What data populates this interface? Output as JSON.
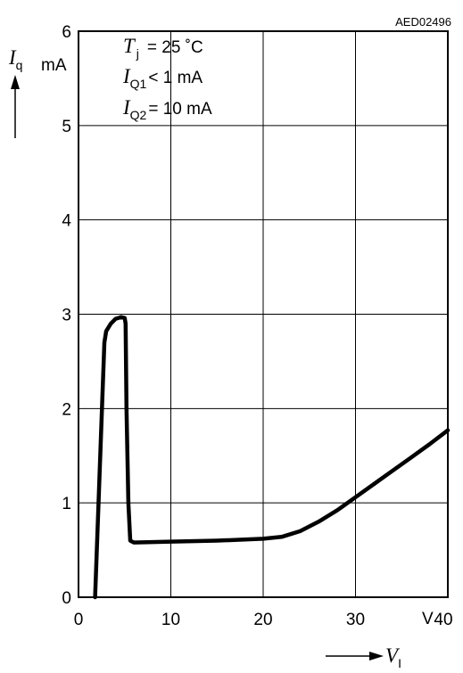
{
  "figure_code": "AED02496",
  "y_axis": {
    "symbol": "I",
    "subscript": "q",
    "unit": "mA"
  },
  "x_axis": {
    "symbol": "V",
    "subscript": "I",
    "unit": "V"
  },
  "conditions": [
    {
      "symbol": "T",
      "subscript": "j",
      "text": "= 25 ˚C"
    },
    {
      "symbol": "I",
      "subscript": "Q1",
      "text": "< 1 mA"
    },
    {
      "symbol": "I",
      "subscript": "Q2",
      "text": "= 10 mA"
    }
  ],
  "chart_data": {
    "type": "line",
    "xlabel": "V_I",
    "ylabel": "I_q",
    "xlim": [
      0,
      40
    ],
    "ylim": [
      0,
      6
    ],
    "x_ticks": [
      "0",
      "10",
      "20",
      "30",
      "40"
    ],
    "y_ticks": [
      "0",
      "1",
      "2",
      "3",
      "4",
      "5",
      "6"
    ],
    "grid": true,
    "series": [
      {
        "x": [
          1.8,
          2.3,
          2.8,
          3.0,
          3.5,
          4.0,
          4.6,
          5.0,
          5.1,
          5.2,
          5.4,
          5.6,
          6.0,
          10,
          15,
          20,
          22,
          24,
          26,
          28,
          30,
          32,
          34,
          36,
          38,
          40
        ],
        "y": [
          0.0,
          1.35,
          2.7,
          2.82,
          2.9,
          2.95,
          2.97,
          2.96,
          2.9,
          2.0,
          1.0,
          0.6,
          0.58,
          0.59,
          0.6,
          0.62,
          0.64,
          0.7,
          0.8,
          0.92,
          1.06,
          1.2,
          1.34,
          1.48,
          1.62,
          1.77
        ]
      }
    ]
  }
}
